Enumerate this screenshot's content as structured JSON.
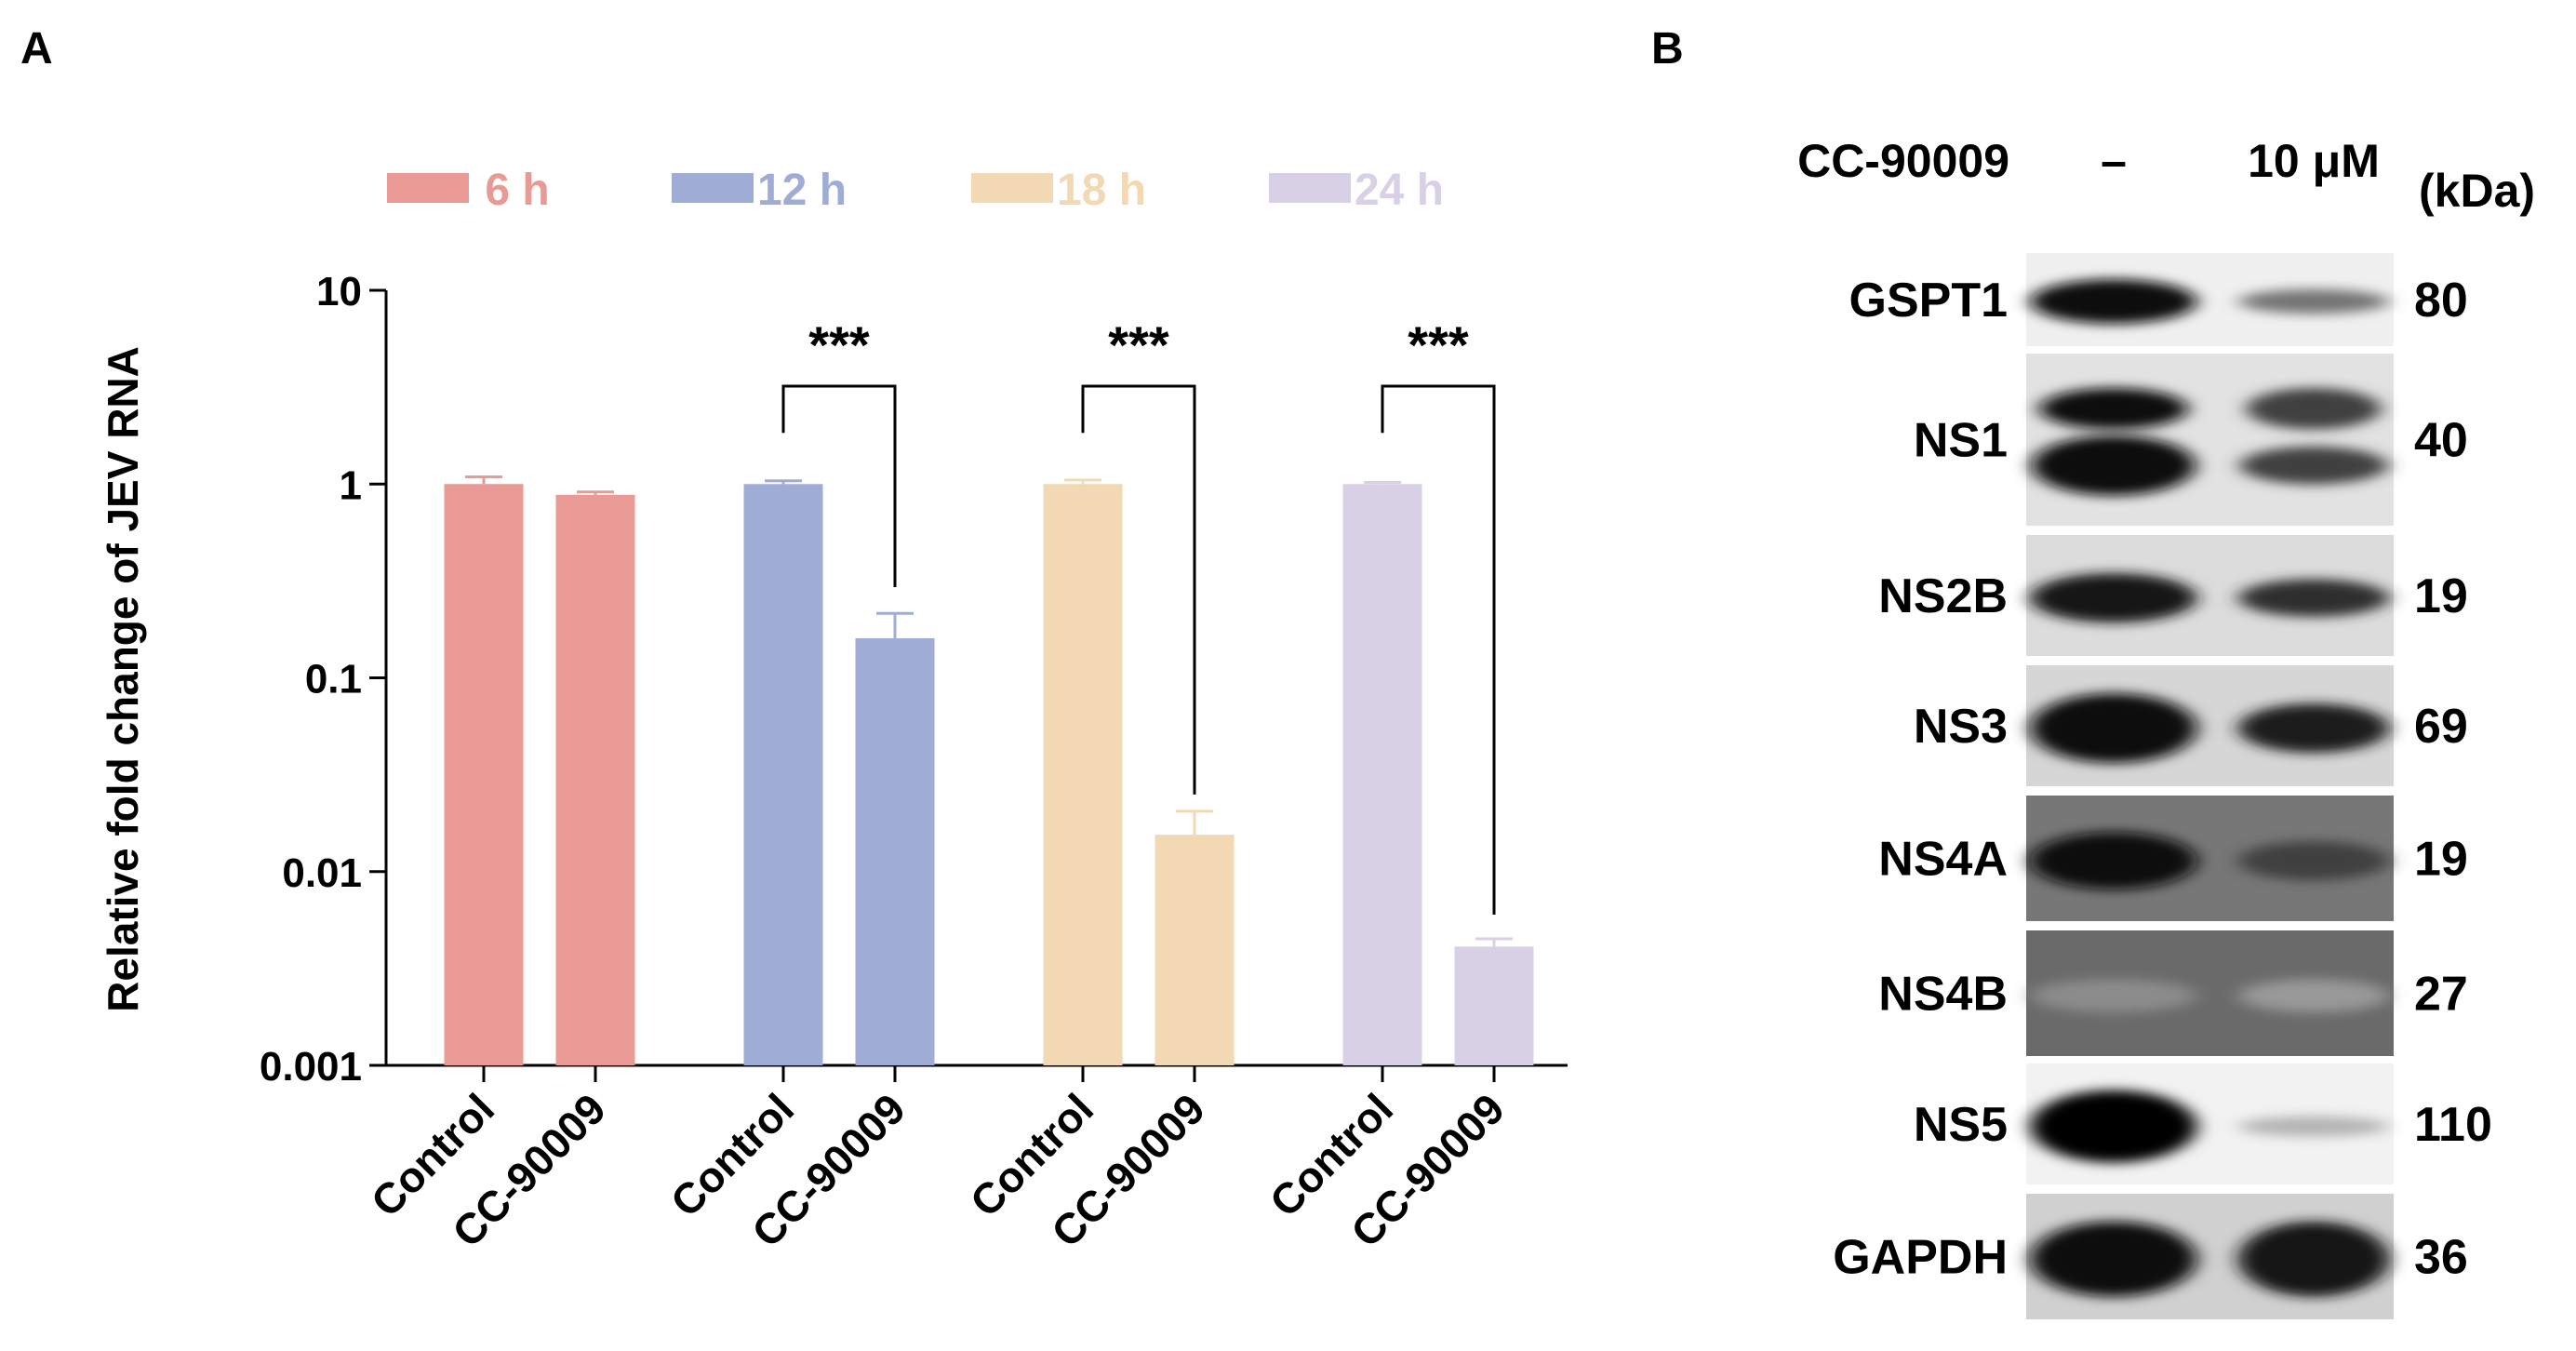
{
  "panels": {
    "a_label": "A",
    "b_label": "B"
  },
  "colors": {
    "6h": "#e99a95",
    "12h": "#9fadd6",
    "18h": "#f2d9b3",
    "24h": "#d8d0e5",
    "axis": "#000000"
  },
  "chart_data": {
    "type": "bar",
    "title": "",
    "xlabel": "",
    "ylabel": "Relative fold change of JEV RNA",
    "yscale": "log",
    "ylim": [
      0.001,
      10
    ],
    "ytick_labels": [
      "0.001",
      "0.01",
      "0.1",
      "1",
      "10"
    ],
    "ytick_values": [
      0.001,
      0.01,
      0.1,
      1,
      10
    ],
    "legend_position": "top",
    "categories": [
      "Control",
      "CC-90009",
      "Control",
      "CC-90009",
      "Control",
      "CC-90009",
      "Control",
      "CC-90009"
    ],
    "groups": [
      {
        "name": "6 h",
        "color_key": "6h",
        "labels": [
          "Control",
          "CC-90009"
        ],
        "values": [
          1.0,
          0.88
        ],
        "errors": [
          0.09,
          0.03
        ],
        "significance": ""
      },
      {
        "name": "12 h",
        "color_key": "12h",
        "labels": [
          "Control",
          "CC-90009"
        ],
        "values": [
          1.0,
          0.16
        ],
        "errors": [
          0.04,
          0.055
        ],
        "significance": "***"
      },
      {
        "name": "18 h",
        "color_key": "18h",
        "labels": [
          "Control",
          "CC-90009"
        ],
        "values": [
          1.0,
          0.0155
        ],
        "errors": [
          0.05,
          0.005
        ],
        "significance": "***"
      },
      {
        "name": "24 h",
        "color_key": "24h",
        "labels": [
          "Control",
          "CC-90009"
        ],
        "values": [
          1.0,
          0.0041
        ],
        "errors": [
          0.02,
          0.0004
        ],
        "significance": "***"
      }
    ]
  },
  "blot": {
    "treatment_label": "CC-90009",
    "lanes": [
      "–",
      "10 μM"
    ],
    "kda_header": "(kDa)",
    "rows": [
      {
        "name": "GSPT1",
        "kda": "80",
        "bg": "#f0f0f0",
        "bands": [
          {
            "i": 0.95,
            "h": 0.4
          },
          {
            "i": 0.55,
            "h": 0.22
          }
        ],
        "double": false
      },
      {
        "name": "NS1",
        "kda": "40",
        "bg": "#e2e2e2",
        "bands": [
          {
            "i": 0.95,
            "h": 0.35
          },
          {
            "i": 0.75,
            "h": 0.22
          }
        ],
        "double": true
      },
      {
        "name": "NS2B",
        "kda": "19",
        "bg": "#dcdcdc",
        "bands": [
          {
            "i": 0.92,
            "h": 0.34
          },
          {
            "i": 0.82,
            "h": 0.26
          }
        ],
        "double": false
      },
      {
        "name": "NS3",
        "kda": "69",
        "bg": "#d6d6d6",
        "bands": [
          {
            "i": 0.95,
            "h": 0.48
          },
          {
            "i": 0.88,
            "h": 0.34
          }
        ],
        "double": false
      },
      {
        "name": "NS4A",
        "kda": "19",
        "bg": "#777777",
        "bands": [
          {
            "i": 0.95,
            "h": 0.38
          },
          {
            "i": 0.75,
            "h": 0.26
          }
        ],
        "double": false
      },
      {
        "name": "NS4B",
        "kda": "27",
        "bg": "#6a6a6a",
        "bands": [
          {
            "i": 0.45,
            "h": 0.22
          },
          {
            "i": 0.4,
            "h": 0.22
          }
        ],
        "double": false
      },
      {
        "name": "NS5",
        "kda": "110",
        "bg": "#f2f2f2",
        "bands": [
          {
            "i": 0.98,
            "h": 0.5
          },
          {
            "i": 0.3,
            "h": 0.14
          }
        ],
        "double": false
      },
      {
        "name": "GAPDH",
        "kda": "36",
        "bg": "#d0d0d0",
        "bands": [
          {
            "i": 0.95,
            "h": 0.5
          },
          {
            "i": 0.92,
            "h": 0.5
          }
        ],
        "double": false
      }
    ]
  }
}
